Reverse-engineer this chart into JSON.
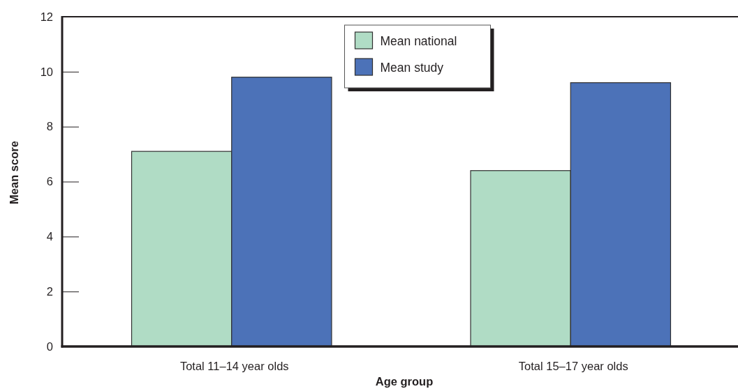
{
  "chart_data": {
    "type": "bar",
    "xlabel": "Age group",
    "ylabel": "Mean score",
    "categories": [
      "Total 11–14 year olds",
      "Total 15–17 year olds"
    ],
    "series": [
      {
        "name": "Mean national",
        "color": "#b0dcc5",
        "values": [
          7.1,
          6.4
        ]
      },
      {
        "name": "Mean study",
        "color": "#4c72b8",
        "values": [
          9.8,
          9.6
        ]
      }
    ],
    "ylim": [
      0,
      12
    ],
    "yticks": [
      0,
      2,
      4,
      6,
      8,
      10,
      12
    ],
    "legend": "top"
  }
}
